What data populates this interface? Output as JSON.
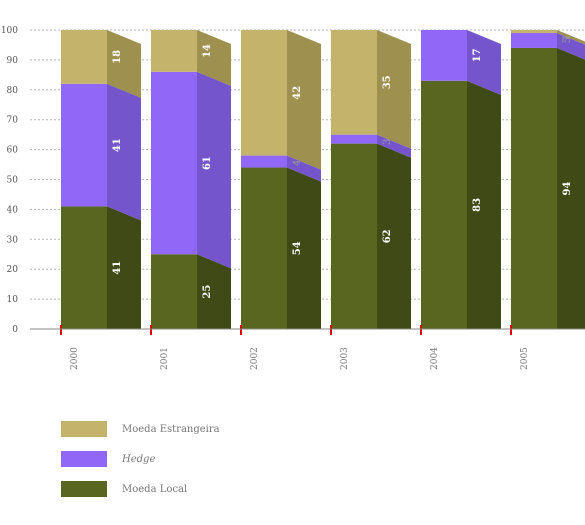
{
  "chart_data": {
    "type": "bar",
    "stacked": true,
    "ylim": [
      0,
      100
    ],
    "yticks": [
      0,
      10,
      20,
      30,
      40,
      50,
      60,
      70,
      80,
      90,
      100
    ],
    "grid": true,
    "categories": [
      "2000",
      "2001",
      "2002",
      "2003",
      "2004",
      "2005"
    ],
    "series": [
      {
        "name": "Moeda Local",
        "color": "#58661f",
        "side": "#3f4a16",
        "values": [
          41,
          25,
          54,
          62,
          83,
          94
        ]
      },
      {
        "name": "Hedge",
        "color": "#9067f6",
        "side": "#7555cc",
        "values": [
          41,
          61,
          4,
          3,
          17,
          5
        ]
      },
      {
        "name": "Moeda Estrangeira",
        "color": "#c4b46b",
        "side": "#9e904f",
        "values": [
          18,
          14,
          42,
          35,
          0,
          1
        ]
      }
    ],
    "legend": [
      "Moeda Estrangeira",
      "Hedge",
      "Moeda Local"
    ],
    "legend_italic": [
      false,
      true,
      false
    ],
    "legend_placement": "bottom-left"
  }
}
